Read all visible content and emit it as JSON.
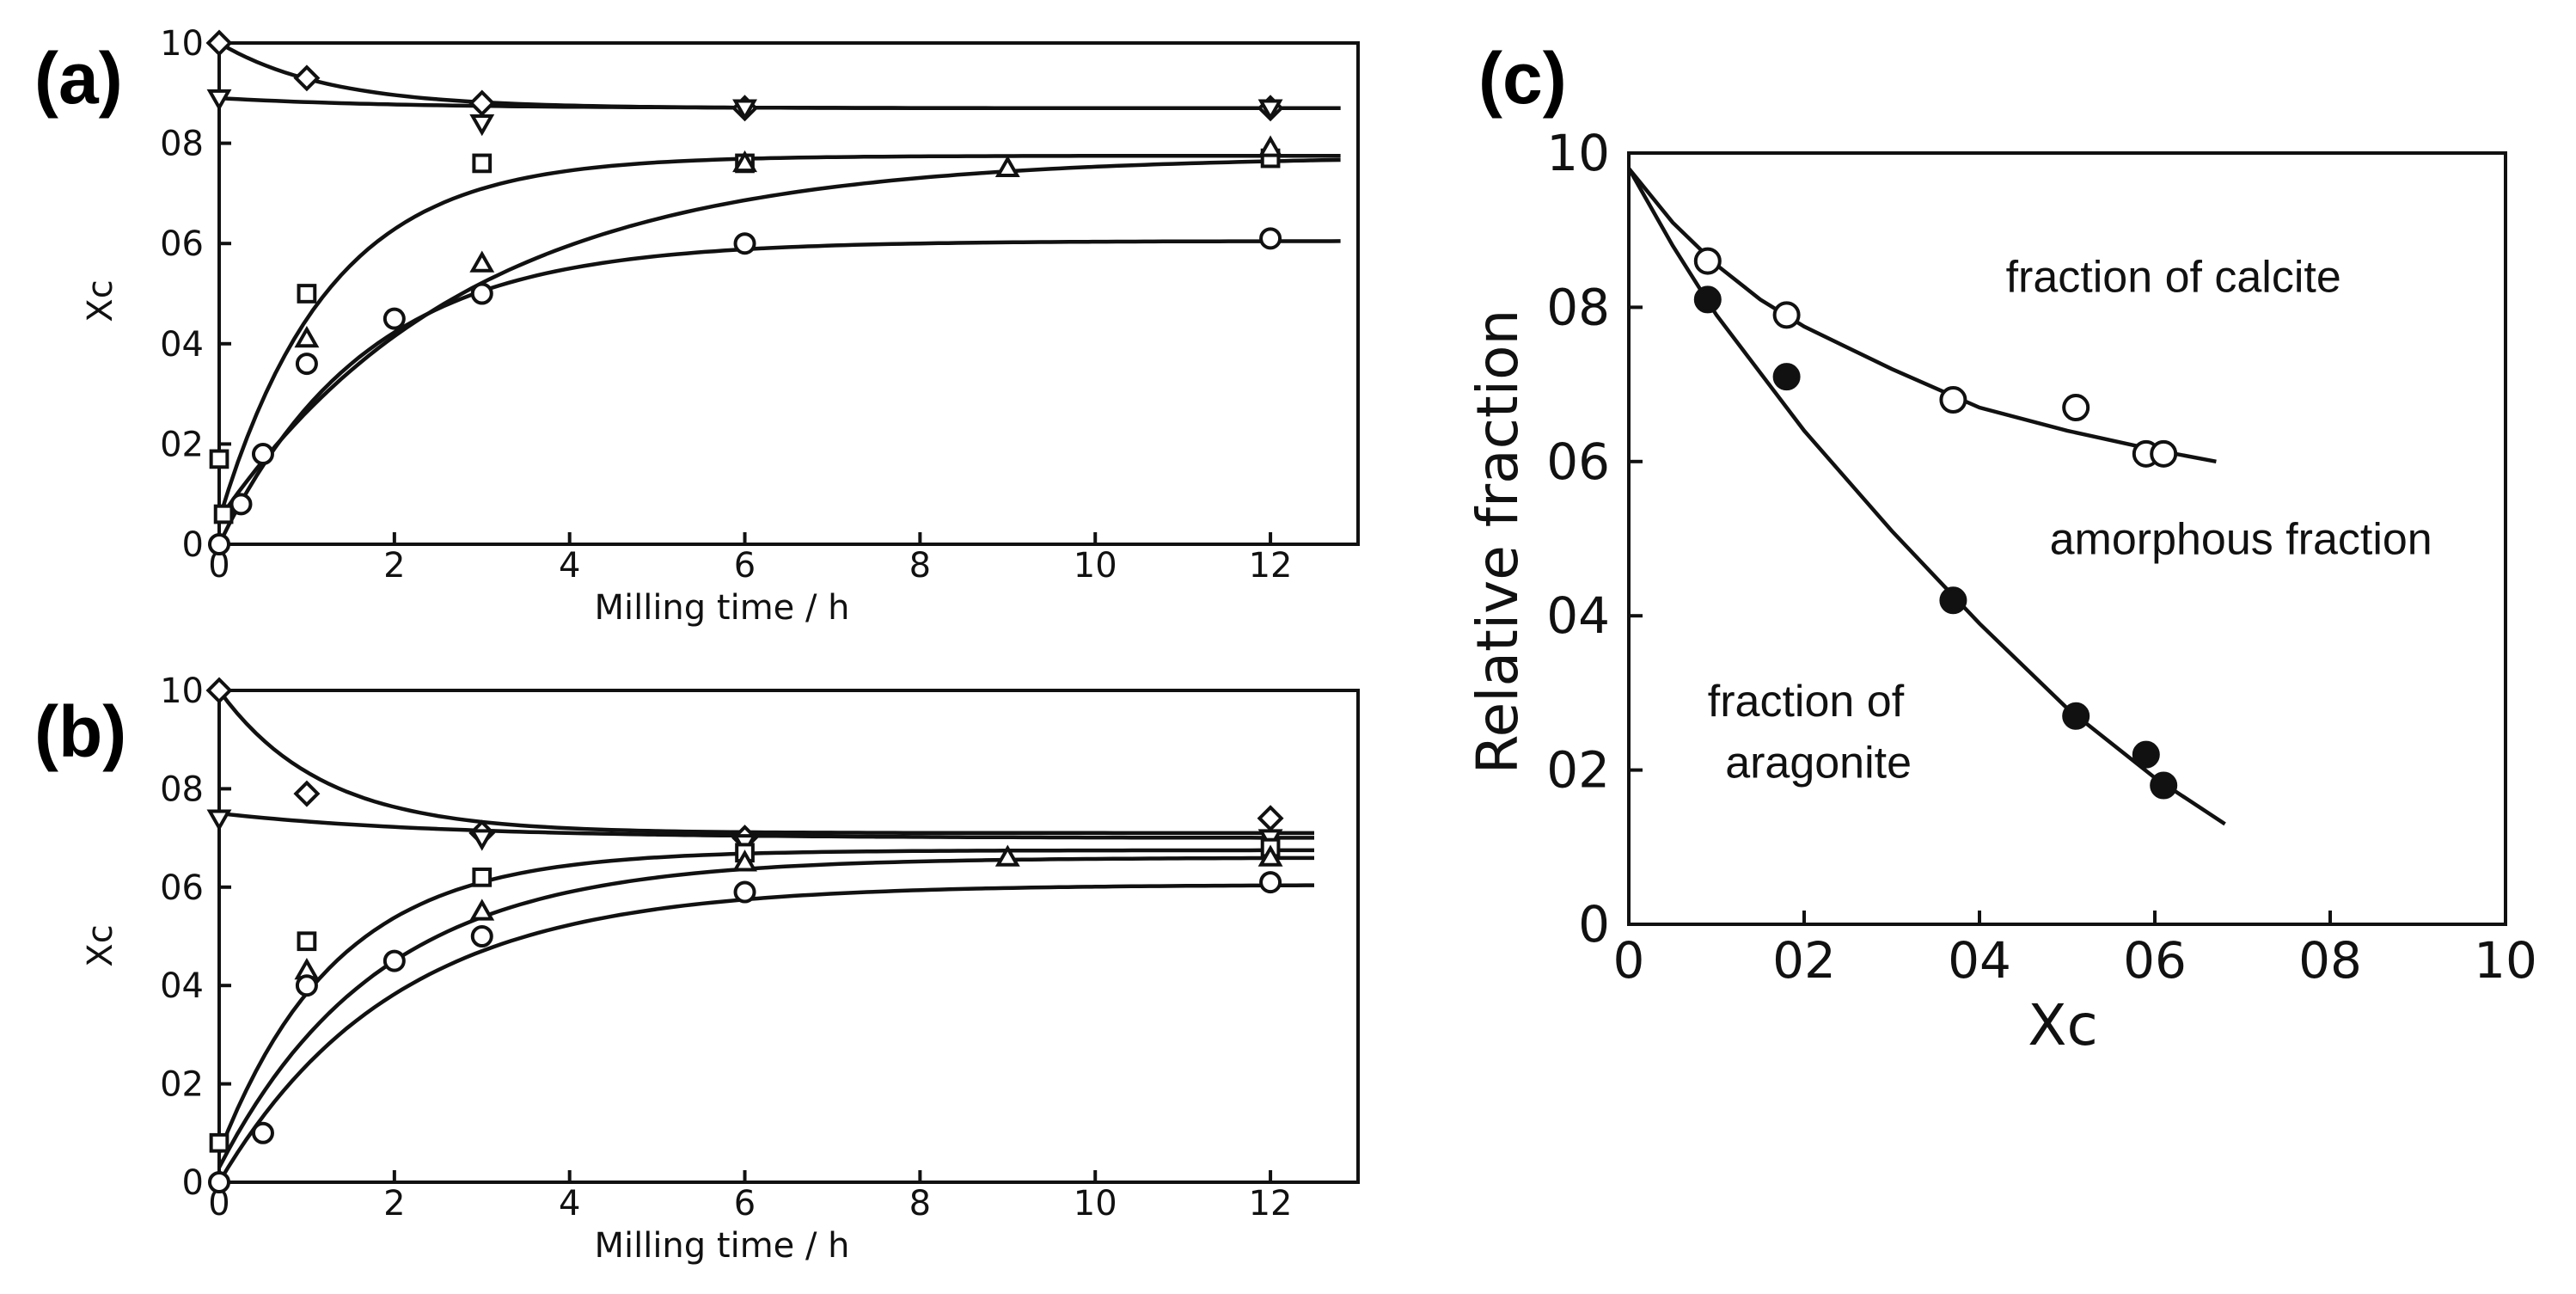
{
  "chart_data": [
    {
      "id": "a",
      "panel_label": "(a)",
      "type": "scatter",
      "xlabel": "Milling time / h",
      "ylabel": "Xc",
      "xlim": [
        0,
        13
      ],
      "ylim": [
        0,
        1.0
      ],
      "x_ticks": [
        0,
        2,
        4,
        6,
        8,
        10,
        12
      ],
      "x_tick_labels": [
        "0",
        "2",
        "4",
        "6",
        "8",
        "10",
        "12"
      ],
      "y_ticks": [
        0,
        0.2,
        0.4,
        0.6,
        0.8,
        1.0
      ],
      "y_tick_labels": [
        "0",
        "02",
        "04",
        "06",
        "08",
        "10"
      ],
      "series": [
        {
          "name": "diamond",
          "marker": "diamond",
          "x": [
            0,
            1,
            3,
            6,
            12
          ],
          "y": [
            1.0,
            0.93,
            0.88,
            0.87,
            0.87
          ],
          "fit": {
            "y0": 1.0,
            "yinf": 0.87,
            "k": 0.8,
            "xmax": 12.8
          }
        },
        {
          "name": "triangle-down",
          "marker": "triangle-down",
          "x": [
            0,
            3,
            6,
            12
          ],
          "y": [
            0.89,
            0.84,
            0.87,
            0.87
          ],
          "fit": {
            "y0": 0.89,
            "yinf": 0.87,
            "k": 0.5,
            "xmax": 12.8
          }
        },
        {
          "name": "square",
          "marker": "square",
          "x": [
            0,
            0.05,
            1,
            3,
            6,
            12
          ],
          "y": [
            0.17,
            0.06,
            0.5,
            0.76,
            0.76,
            0.77
          ],
          "fit": {
            "y0": 0.05,
            "yinf": 0.775,
            "k": 0.8,
            "xmax": 12.8
          }
        },
        {
          "name": "triangle-up",
          "marker": "triangle-up",
          "x": [
            1,
            3,
            6,
            9,
            12
          ],
          "y": [
            0.41,
            0.56,
            0.76,
            0.75,
            0.79
          ],
          "fit": {
            "y0": 0.05,
            "yinf": 0.775,
            "k": 0.35,
            "xmax": 12.8
          }
        },
        {
          "name": "circle",
          "marker": "circle",
          "x": [
            0,
            0.25,
            0.5,
            1,
            2,
            3,
            6,
            12
          ],
          "y": [
            0.0,
            0.08,
            0.18,
            0.36,
            0.45,
            0.5,
            0.6,
            0.61
          ],
          "fit": {
            "y0": 0.0,
            "yinf": 0.605,
            "k": 0.6,
            "xmax": 12.8
          }
        }
      ]
    },
    {
      "id": "b",
      "panel_label": "(b)",
      "type": "scatter",
      "xlabel": "Milling time / h",
      "ylabel": "Xc",
      "xlim": [
        0,
        13
      ],
      "ylim": [
        0,
        1.0
      ],
      "x_ticks": [
        0,
        2,
        4,
        6,
        8,
        10,
        12
      ],
      "x_tick_labels": [
        "0",
        "2",
        "4",
        "6",
        "8",
        "10",
        "12"
      ],
      "y_ticks": [
        0,
        0.2,
        0.4,
        0.6,
        0.8,
        1.0
      ],
      "y_tick_labels": [
        "0",
        "02",
        "04",
        "06",
        "08",
        "10"
      ],
      "series": [
        {
          "name": "diamond",
          "marker": "diamond",
          "x": [
            0,
            1,
            3,
            6,
            12
          ],
          "y": [
            1.0,
            0.79,
            0.71,
            0.7,
            0.74
          ],
          "fit": {
            "y0": 1.0,
            "yinf": 0.71,
            "k": 0.85,
            "xmax": 12.5
          }
        },
        {
          "name": "triangle-down",
          "marker": "triangle-down",
          "x": [
            0,
            3,
            6,
            12
          ],
          "y": [
            0.74,
            0.7,
            0.69,
            0.7
          ],
          "fit": {
            "y0": 0.75,
            "yinf": 0.7,
            "k": 0.4,
            "xmax": 12.5
          }
        },
        {
          "name": "square",
          "marker": "square",
          "x": [
            0,
            1,
            3,
            6,
            12
          ],
          "y": [
            0.08,
            0.49,
            0.62,
            0.67,
            0.68
          ],
          "fit": {
            "y0": 0.06,
            "yinf": 0.675,
            "k": 0.75,
            "xmax": 12.5
          }
        },
        {
          "name": "triangle-up",
          "marker": "triangle-up",
          "x": [
            1,
            3,
            6,
            9,
            12
          ],
          "y": [
            0.43,
            0.55,
            0.65,
            0.66,
            0.66
          ],
          "fit": {
            "y0": 0.03,
            "yinf": 0.66,
            "k": 0.55,
            "xmax": 12.5
          }
        },
        {
          "name": "circle",
          "marker": "circle",
          "x": [
            0,
            0.5,
            1,
            2,
            3,
            6,
            12
          ],
          "y": [
            0.0,
            0.1,
            0.4,
            0.45,
            0.5,
            0.59,
            0.61
          ],
          "fit": {
            "y0": 0.0,
            "yinf": 0.605,
            "k": 0.5,
            "xmax": 12.5
          }
        }
      ]
    },
    {
      "id": "c",
      "panel_label": "(c)",
      "type": "scatter",
      "xlabel": "Xc",
      "ylabel": "Relative fraction",
      "xlim": [
        0,
        1.0
      ],
      "ylim": [
        0,
        1.0
      ],
      "x_ticks": [
        0,
        0.2,
        0.4,
        0.6,
        0.8,
        1.0
      ],
      "x_tick_labels": [
        "0",
        "02",
        "04",
        "06",
        "08",
        "10"
      ],
      "y_ticks": [
        0,
        0.2,
        0.4,
        0.6,
        0.8,
        1.0
      ],
      "y_tick_labels": [
        "0",
        "02",
        "04",
        "06",
        "08",
        "10"
      ],
      "annotations": [
        {
          "text": "fraction of calcite",
          "x": 0.43,
          "y": 0.82
        },
        {
          "text": "amorphous  fraction",
          "x": 0.48,
          "y": 0.48
        },
        {
          "text": "fraction of",
          "x": 0.09,
          "y": 0.27
        },
        {
          "text": "aragonite",
          "x": 0.11,
          "y": 0.19
        }
      ],
      "series": [
        {
          "name": "calcite",
          "marker": "circle-open",
          "x": [
            0.09,
            0.18,
            0.37,
            0.51,
            0.59,
            0.61
          ],
          "y": [
            0.86,
            0.79,
            0.68,
            0.67,
            0.61,
            0.61
          ],
          "fit_x": [
            0.0,
            0.05,
            0.1,
            0.15,
            0.2,
            0.3,
            0.4,
            0.5,
            0.6,
            0.67
          ],
          "fit_y": [
            0.98,
            0.91,
            0.855,
            0.81,
            0.775,
            0.72,
            0.67,
            0.64,
            0.615,
            0.6
          ]
        },
        {
          "name": "aragonite",
          "marker": "circle-filled",
          "x": [
            0.09,
            0.18,
            0.37,
            0.51,
            0.59,
            0.61
          ],
          "y": [
            0.81,
            0.71,
            0.42,
            0.27,
            0.22,
            0.18
          ],
          "fit_x": [
            0.0,
            0.05,
            0.1,
            0.2,
            0.3,
            0.4,
            0.5,
            0.6,
            0.68
          ],
          "fit_y": [
            0.98,
            0.88,
            0.79,
            0.64,
            0.51,
            0.39,
            0.28,
            0.19,
            0.13
          ]
        }
      ]
    }
  ]
}
